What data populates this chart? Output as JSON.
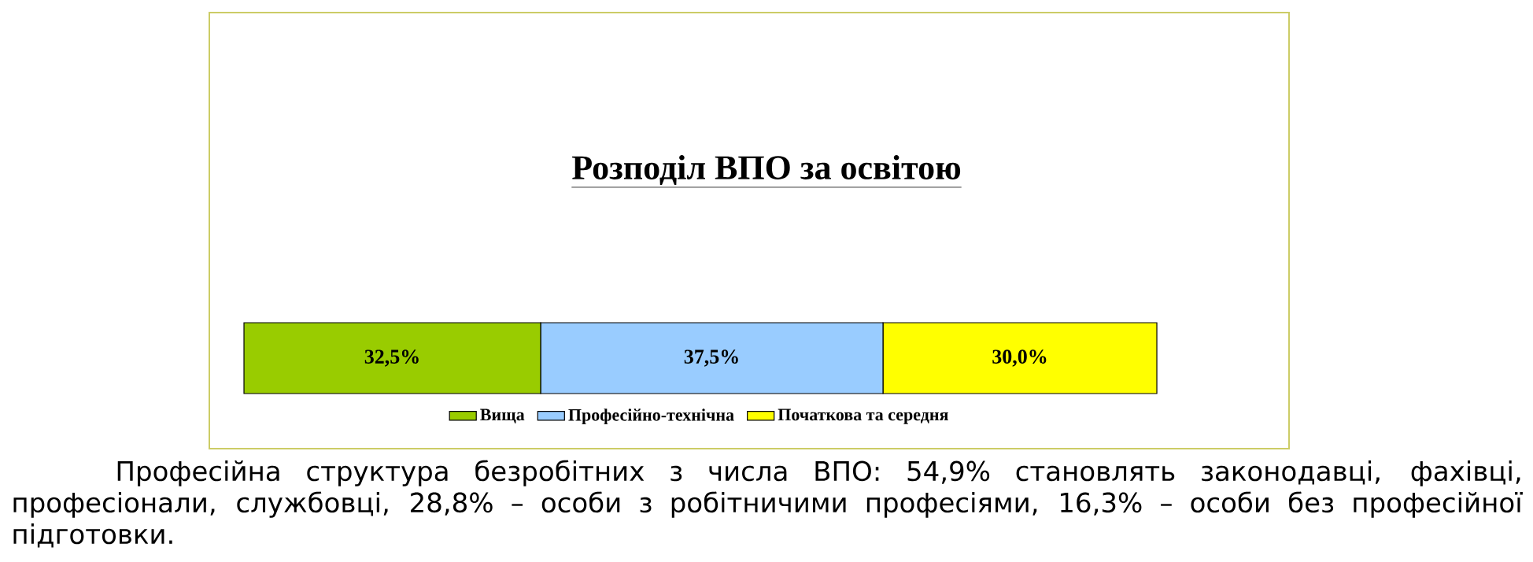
{
  "chart_data": {
    "type": "bar",
    "orientation": "horizontal",
    "stacked": true,
    "title": "Розподіл ВПО за освітою",
    "categories": [
      null
    ],
    "series": [
      {
        "name": "Вища",
        "color": "#99cc00",
        "values": [
          32.5
        ],
        "value_labels": [
          "32,5%"
        ]
      },
      {
        "name": "Професійно-технічна",
        "color": "#99ccff",
        "values": [
          37.5
        ],
        "value_labels": [
          "37,5%"
        ]
      },
      {
        "name": "Початкова та середня",
        "color": "#ffff00",
        "values": [
          30.0
        ],
        "value_labels": [
          "30,0%"
        ]
      }
    ],
    "legend": "bottom",
    "annotations": [
      "Професійна структура безробітних з числа ВПО: 54,9% становлять законодавці, фахівці, професіонали, службовці, 28,8% – особи з робітничими професіями, 16,3% – особи без професійної підготовки."
    ]
  }
}
